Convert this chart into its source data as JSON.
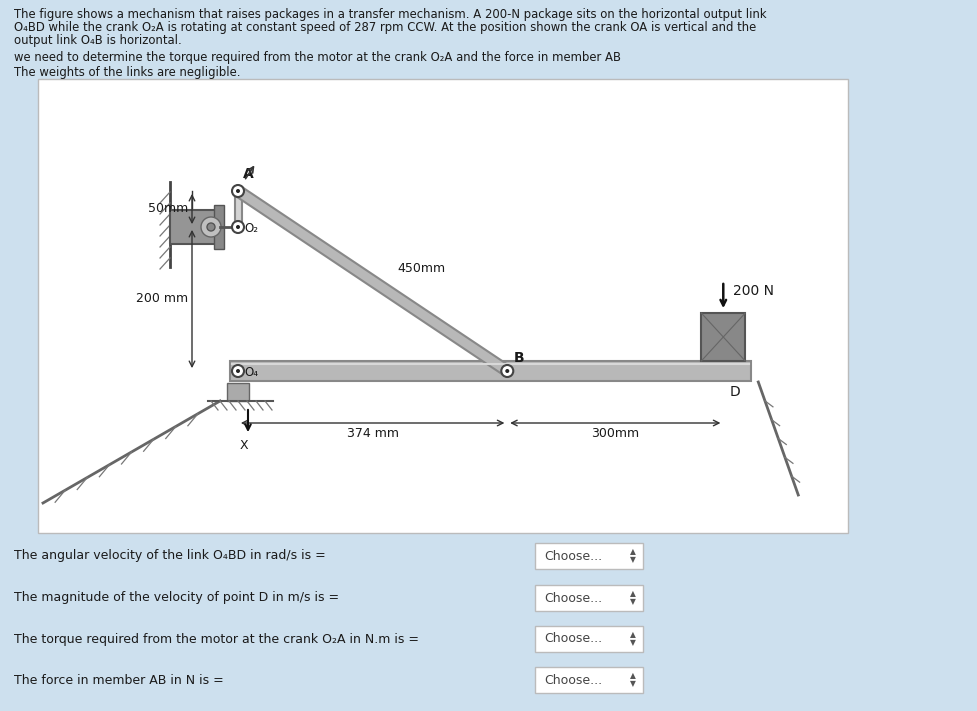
{
  "bg_color": "#cde0ee",
  "panel_bg": "#ffffff",
  "title_text1": "The figure shows a mechanism that raises packages in a transfer mechanism. A 200-N package sits on the horizontal output link",
  "title_text2": "O₄BD while the crank O₂A is rotating at constant speed of 287 rpm CCW. At the position shown the crank OA is vertical and the",
  "title_text3": "output link O₄B is horizontal.",
  "subtitle1": "we need to determine the torque required from the motor at the crank O₂A and the force in member AB",
  "subtitle2": "The weights of the links are negligible.",
  "label_50mm": "50mm",
  "label_200mm": "200 mm",
  "label_450mm": "450mm",
  "label_200N": "200 N",
  "label_374mm": "374 mm",
  "label_300mm": "300mm",
  "label_A": "A",
  "label_O2": "O₂",
  "label_O4": "O₄",
  "label_B": "B",
  "label_D": "D",
  "label_X": "X",
  "q1": "The angular velocity of the link O₄BD in rad/s is =",
  "q2": "The magnitude of the velocity of point D in m/s is =",
  "q3": "The torque required from the motor at the crank O₂A in N.m is =",
  "q4": "The force in member AB in N is =",
  "choose_text": "Choose...",
  "link_gray": "#b8b8b8",
  "link_light": "#d4d4d4",
  "link_edge": "#888888",
  "pivot_fill": "#ffffff",
  "pivot_edge": "#444444",
  "motor_fill": "#909090",
  "pkg_fill": "#808080",
  "ground_line": "#555555",
  "dim_color": "#333333",
  "text_color": "#1a1a1a",
  "box_border": "#bbbbbb",
  "box_bg": "#ffffff"
}
